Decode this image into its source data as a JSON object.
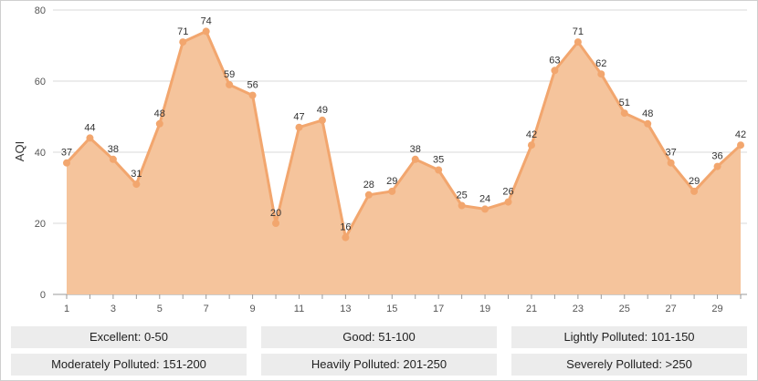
{
  "chart_data": {
    "type": "area",
    "title": "",
    "xlabel": "",
    "ylabel": "AQI",
    "x": [
      1,
      2,
      3,
      4,
      5,
      6,
      7,
      8,
      9,
      10,
      11,
      12,
      13,
      14,
      15,
      16,
      17,
      18,
      19,
      20,
      21,
      22,
      23,
      24,
      25,
      26,
      27,
      28,
      29,
      30
    ],
    "values": [
      37,
      44,
      38,
      31,
      48,
      71,
      74,
      59,
      56,
      20,
      47,
      49,
      16,
      28,
      29,
      38,
      35,
      25,
      24,
      26,
      42,
      63,
      71,
      62,
      51,
      48,
      37,
      29,
      36,
      42
    ],
    "x_tick_labels": [
      "1",
      "3",
      "5",
      "7",
      "9",
      "11",
      "13",
      "15",
      "17",
      "19",
      "21",
      "23",
      "25",
      "27",
      "29"
    ],
    "y_ticks": [
      0,
      20,
      40,
      60,
      80
    ],
    "ylim": [
      0,
      80
    ],
    "grid": true,
    "colors": {
      "fill": "#f5c49c",
      "line": "#f2a66e",
      "marker": "#f2a66e",
      "grid": "#d8d8d8"
    }
  },
  "legend": {
    "items": [
      "Excellent: 0-50",
      "Good: 51-100",
      "Lightly Polluted: 101-150",
      "Moderately Polluted: 151-200",
      "Heavily Polluted: 201-250",
      "Severely Polluted: >250"
    ]
  }
}
